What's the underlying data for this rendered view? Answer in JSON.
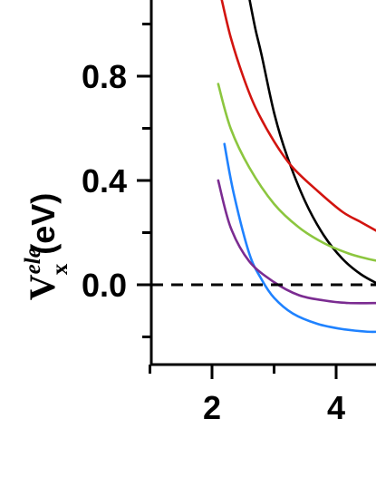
{
  "chart_data": {
    "type": "line",
    "title": "",
    "xlabel": "",
    "ylabel": {
      "main": "V",
      "superscript": "ele",
      "subscript": "x",
      "unit": "(eV)"
    },
    "xlim": [
      1,
      4.7
    ],
    "ylim": [
      -0.3,
      1.1
    ],
    "xticks": [
      2,
      4
    ],
    "xtick_labels": [
      "2",
      "4"
    ],
    "yticks": [
      0.8,
      0.4,
      0.0
    ],
    "ytick_labels": [
      "0.8",
      "0.4",
      "0.0"
    ],
    "y_minor_ticks": [
      1.0,
      0.6,
      0.2,
      -0.2
    ],
    "x_minor_ticks": [
      1,
      3
    ],
    "reference_line": {
      "y": 0.0,
      "style": "dashed",
      "color": "#000000"
    },
    "grid": false,
    "series": [
      {
        "color": "#000000",
        "x": [
          2.6,
          2.7,
          2.8,
          3.0,
          3.2,
          3.5,
          3.8,
          4.1,
          4.4,
          4.7
        ],
        "y": [
          1.1,
          0.98,
          0.88,
          0.66,
          0.5,
          0.32,
          0.19,
          0.1,
          0.04,
          0.0
        ]
      },
      {
        "color": "#d2140f",
        "x": [
          2.15,
          2.3,
          2.5,
          2.7,
          3.0,
          3.3,
          3.7,
          4.1,
          4.4,
          4.7
        ],
        "y": [
          1.1,
          0.95,
          0.8,
          0.68,
          0.55,
          0.45,
          0.36,
          0.28,
          0.24,
          0.2
        ]
      },
      {
        "color": "#8cc63f",
        "x": [
          2.1,
          2.3,
          2.6,
          3.0,
          3.4,
          3.8,
          4.2,
          4.5,
          4.7
        ],
        "y": [
          0.77,
          0.6,
          0.45,
          0.31,
          0.22,
          0.16,
          0.12,
          0.1,
          0.09
        ]
      },
      {
        "color": "#1f82ff",
        "x": [
          2.2,
          2.35,
          2.6,
          2.8,
          3.0,
          3.3,
          3.7,
          4.1,
          4.5,
          4.7
        ],
        "y": [
          0.54,
          0.35,
          0.12,
          0.02,
          -0.05,
          -0.11,
          -0.15,
          -0.17,
          -0.18,
          -0.18
        ]
      },
      {
        "color": "#7b2c91",
        "x": [
          2.1,
          2.3,
          2.6,
          3.0,
          3.4,
          3.8,
          4.2,
          4.7
        ],
        "y": [
          0.4,
          0.22,
          0.09,
          0.01,
          -0.04,
          -0.06,
          -0.07,
          -0.07
        ]
      }
    ]
  }
}
